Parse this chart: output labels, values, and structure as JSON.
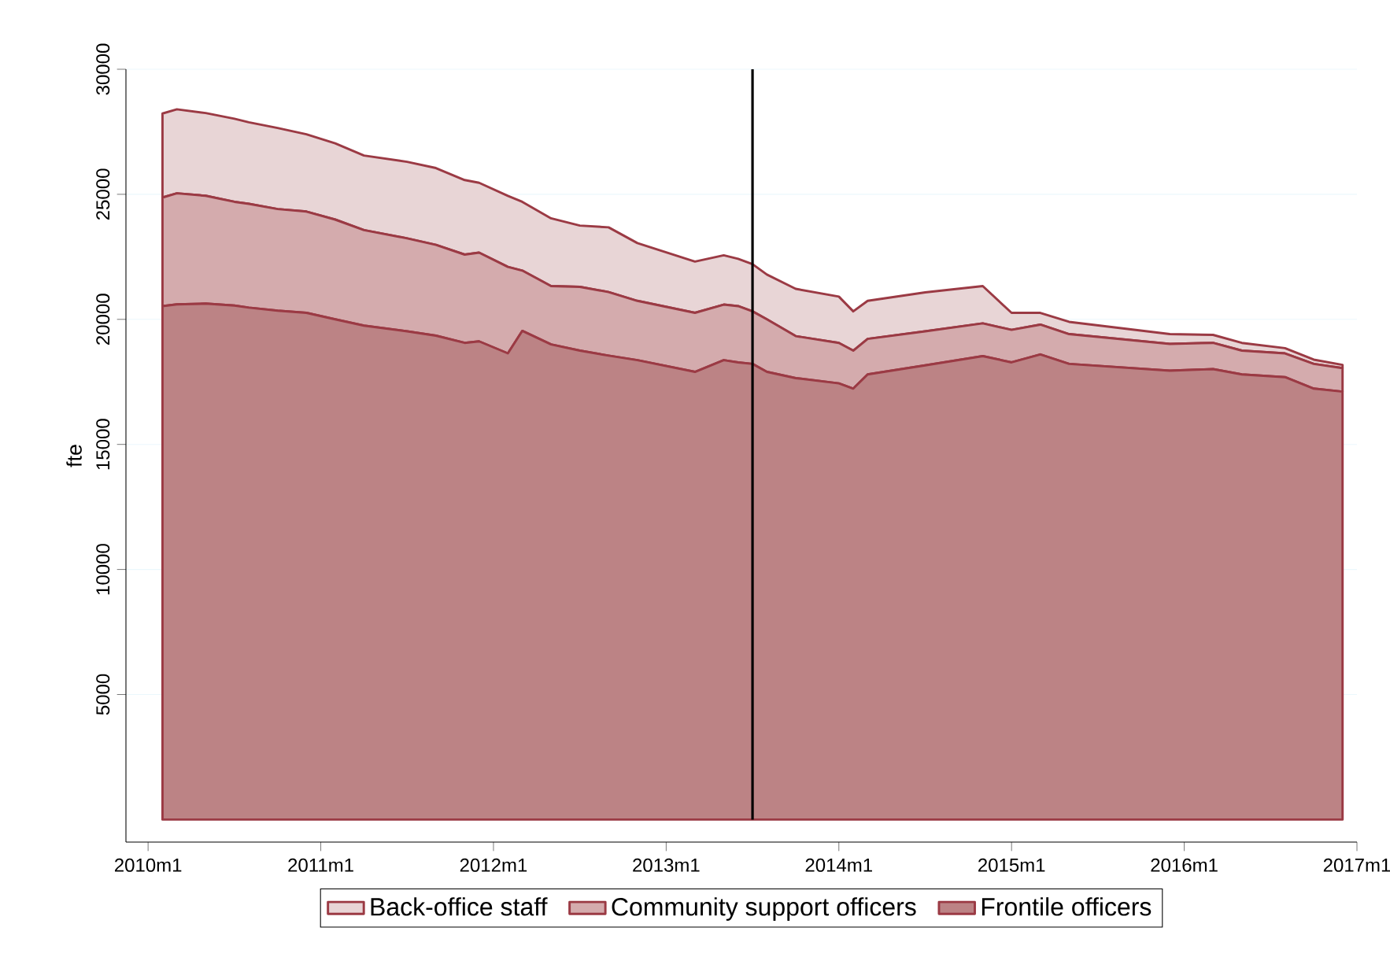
{
  "chart_data": {
    "type": "area",
    "stacked": true,
    "ylabel": "fte",
    "x": [
      "2010-02",
      "2010-03",
      "2010-05",
      "2010-07",
      "2010-08",
      "2010-10",
      "2010-12",
      "2011-02",
      "2011-04",
      "2011-07",
      "2011-09",
      "2011-11",
      "2011-12",
      "2012-02",
      "2012-03",
      "2012-05",
      "2012-07",
      "2012-09",
      "2012-11",
      "2013-03",
      "2013-05",
      "2013-06",
      "2013-07",
      "2013-08",
      "2013-10",
      "2014-01",
      "2014-02",
      "2014-03",
      "2014-07",
      "2014-11",
      "2015-01",
      "2015-03",
      "2015-05",
      "2015-12",
      "2016-03",
      "2016-05",
      "2016-08",
      "2016-10",
      "2016-12"
    ],
    "series": [
      {
        "name": "Frontile officers",
        "color": "#bc8385",
        "values": [
          20530,
          20600,
          20630,
          20550,
          20470,
          20350,
          20260,
          20000,
          19750,
          19520,
          19350,
          19060,
          19120,
          18640,
          19540,
          19000,
          18750,
          18550,
          18370,
          17900,
          18370,
          18280,
          18220,
          17900,
          17650,
          17440,
          17230,
          17800,
          18160,
          18530,
          18280,
          18600,
          18220,
          17950,
          18010,
          17800,
          17690,
          17230,
          17110
        ]
      },
      {
        "name": "Community support officers",
        "color": "#d4abad",
        "values": [
          4340,
          4440,
          4310,
          4150,
          4150,
          4060,
          4050,
          3990,
          3820,
          3720,
          3630,
          3530,
          3550,
          3460,
          2410,
          2330,
          2550,
          2540,
          2370,
          2360,
          2220,
          2250,
          2100,
          2100,
          1680,
          1620,
          1520,
          1420,
          1360,
          1310,
          1300,
          1190,
          1190,
          1070,
          1050,
          950,
          950,
          990,
          940
        ]
      },
      {
        "name": "Back-office staff",
        "color": "#e8d5d6",
        "values": [
          3360,
          3360,
          3310,
          3320,
          3260,
          3240,
          3090,
          3050,
          2980,
          3060,
          3070,
          2980,
          2790,
          2840,
          2750,
          2710,
          2450,
          2590,
          2310,
          2050,
          1970,
          1890,
          1890,
          1790,
          1890,
          1850,
          1570,
          1520,
          1560,
          1490,
          680,
          470,
          490,
          390,
          320,
          310,
          210,
          170,
          130
        ]
      }
    ],
    "xlim": [
      "2009-11-15",
      "2017-01"
    ],
    "xticks": [
      {
        "value": "2010-01",
        "label": "2010m1"
      },
      {
        "value": "2011-01",
        "label": "2011m1"
      },
      {
        "value": "2012-01",
        "label": "2012m1"
      },
      {
        "value": "2013-01",
        "label": "2013m1"
      },
      {
        "value": "2014-01",
        "label": "2014m1"
      },
      {
        "value": "2015-01",
        "label": "2015m1"
      },
      {
        "value": "2016-01",
        "label": "2016m1"
      },
      {
        "value": "2017-01",
        "label": "2017m1"
      }
    ],
    "ylim": [
      -900,
      30000
    ],
    "yticks": [
      5000,
      10000,
      15000,
      20000,
      25000,
      30000
    ],
    "grid": "y",
    "legend": "bottom",
    "ref_lines": [
      {
        "axis": "x",
        "value": "2013-07",
        "color": "#000000"
      }
    ]
  }
}
